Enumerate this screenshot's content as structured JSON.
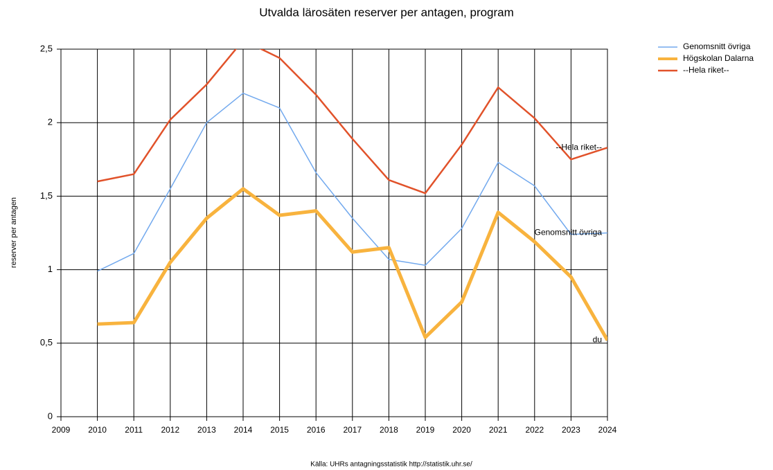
{
  "chart_data": {
    "type": "line",
    "title": "Utvalda lärosäten reserver per antagen, program",
    "y_label": "reserver per antagen",
    "source": "Källa: UHRs antagningsstatistik http://statistik.uhr.se/",
    "x": [
      2010,
      2011,
      2012,
      2013,
      2014,
      2015,
      2016,
      2017,
      2018,
      2019,
      2020,
      2021,
      2022,
      2023,
      2024
    ],
    "series": [
      {
        "name": "Genomsnitt övriga",
        "color": "#72a9ee",
        "values": [
          0.99,
          1.11,
          1.55,
          2.0,
          2.2,
          2.1,
          1.66,
          1.35,
          1.07,
          1.03,
          1.28,
          1.73,
          1.57,
          1.24,
          1.25
        ]
      },
      {
        "name": "Högskolan Dalarna",
        "color": "#f8b33e",
        "values": [
          0.63,
          0.64,
          1.05,
          1.35,
          1.55,
          1.37,
          1.4,
          1.12,
          1.15,
          0.54,
          0.78,
          1.39,
          1.19,
          0.95,
          0.52
        ]
      },
      {
        "name": "--Hela riket--",
        "color": "#e1522a",
        "values": [
          1.6,
          1.65,
          2.02,
          2.26,
          2.56,
          2.44,
          2.19,
          1.89,
          1.61,
          1.52,
          1.85,
          2.24,
          2.03,
          1.75,
          1.83
        ]
      }
    ],
    "annotations": [
      "--Hela riket--",
      "Genomsnitt övriga",
      "du"
    ],
    "xlim": [
      2009,
      2024
    ],
    "xticks": [
      2009,
      2010,
      2011,
      2012,
      2013,
      2014,
      2015,
      2016,
      2017,
      2018,
      2019,
      2020,
      2021,
      2022,
      2023,
      2024
    ],
    "ylim": [
      0,
      2.5
    ],
    "yticks": [
      0,
      {
        "value": 0.5,
        "label": "0,5"
      },
      1,
      {
        "value": 1.5,
        "label": "1,5"
      },
      2,
      {
        "value": 2.5,
        "label": "2,5"
      }
    ],
    "grid": true,
    "legend": "top-right"
  }
}
